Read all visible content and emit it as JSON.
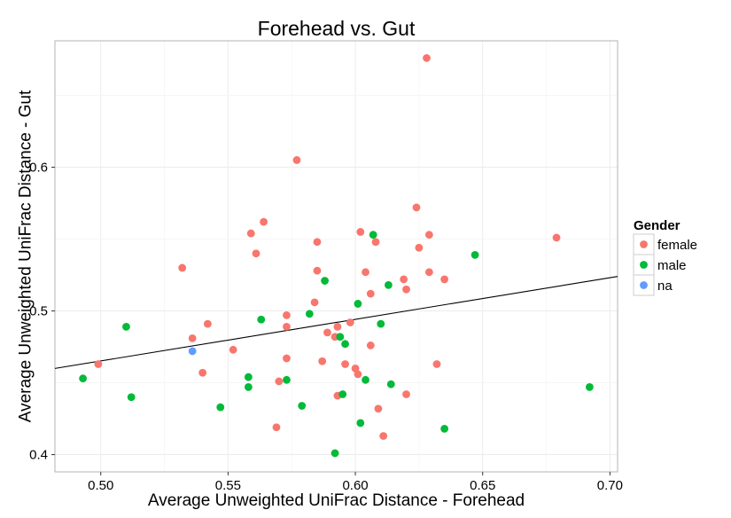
{
  "chart_data": {
    "type": "scatter",
    "title": "Forehead vs. Gut",
    "xlabel": "Average Unweighted UniFrac Distance - Forehead",
    "ylabel": "Average Unweighted UniFrac Distance - Gut",
    "xlim": [
      0.482,
      0.703
    ],
    "ylim": [
      0.388,
      0.688
    ],
    "xticks": [
      0.5,
      0.55,
      0.6,
      0.65,
      0.7
    ],
    "xtick_labels": [
      "0.50",
      "0.55",
      "0.60",
      "0.65",
      "0.70"
    ],
    "yticks": [
      0.4,
      0.5,
      0.6
    ],
    "ytick_labels": [
      "0.4",
      "0.5",
      "0.6"
    ],
    "grid": true,
    "legend": {
      "title": "Gender",
      "position": "right"
    },
    "fit_line": {
      "x": [
        0.482,
        0.703
      ],
      "y": [
        0.46,
        0.524
      ]
    },
    "series": [
      {
        "name": "female",
        "color": "#f8766d",
        "points": [
          [
            0.628,
            0.676
          ],
          [
            0.577,
            0.605
          ],
          [
            0.624,
            0.572
          ],
          [
            0.564,
            0.562
          ],
          [
            0.559,
            0.554
          ],
          [
            0.602,
            0.555
          ],
          [
            0.629,
            0.553
          ],
          [
            0.679,
            0.551
          ],
          [
            0.585,
            0.548
          ],
          [
            0.608,
            0.548
          ],
          [
            0.625,
            0.544
          ],
          [
            0.561,
            0.54
          ],
          [
            0.532,
            0.53
          ],
          [
            0.585,
            0.528
          ],
          [
            0.604,
            0.527
          ],
          [
            0.629,
            0.527
          ],
          [
            0.619,
            0.522
          ],
          [
            0.635,
            0.522
          ],
          [
            0.62,
            0.515
          ],
          [
            0.606,
            0.512
          ],
          [
            0.584,
            0.506
          ],
          [
            0.573,
            0.497
          ],
          [
            0.598,
            0.492
          ],
          [
            0.542,
            0.491
          ],
          [
            0.573,
            0.489
          ],
          [
            0.593,
            0.489
          ],
          [
            0.589,
            0.485
          ],
          [
            0.592,
            0.482
          ],
          [
            0.536,
            0.481
          ],
          [
            0.606,
            0.476
          ],
          [
            0.552,
            0.473
          ],
          [
            0.573,
            0.467
          ],
          [
            0.587,
            0.465
          ],
          [
            0.499,
            0.463
          ],
          [
            0.596,
            0.463
          ],
          [
            0.632,
            0.463
          ],
          [
            0.6,
            0.46
          ],
          [
            0.54,
            0.457
          ],
          [
            0.601,
            0.456
          ],
          [
            0.57,
            0.451
          ],
          [
            0.62,
            0.442
          ],
          [
            0.593,
            0.441
          ],
          [
            0.609,
            0.432
          ],
          [
            0.569,
            0.419
          ],
          [
            0.611,
            0.413
          ]
        ]
      },
      {
        "name": "male",
        "color": "#00ba38",
        "points": [
          [
            0.607,
            0.553
          ],
          [
            0.647,
            0.539
          ],
          [
            0.588,
            0.521
          ],
          [
            0.613,
            0.518
          ],
          [
            0.601,
            0.505
          ],
          [
            0.582,
            0.498
          ],
          [
            0.563,
            0.494
          ],
          [
            0.51,
            0.489
          ],
          [
            0.61,
            0.491
          ],
          [
            0.594,
            0.482
          ],
          [
            0.596,
            0.477
          ],
          [
            0.493,
            0.453
          ],
          [
            0.558,
            0.454
          ],
          [
            0.573,
            0.452
          ],
          [
            0.604,
            0.452
          ],
          [
            0.614,
            0.449
          ],
          [
            0.558,
            0.447
          ],
          [
            0.692,
            0.447
          ],
          [
            0.595,
            0.442
          ],
          [
            0.512,
            0.44
          ],
          [
            0.547,
            0.433
          ],
          [
            0.579,
            0.434
          ],
          [
            0.602,
            0.422
          ],
          [
            0.635,
            0.418
          ],
          [
            0.592,
            0.401
          ]
        ]
      },
      {
        "name": "na",
        "color": "#619cff",
        "points": [
          [
            0.536,
            0.472
          ]
        ]
      }
    ]
  }
}
